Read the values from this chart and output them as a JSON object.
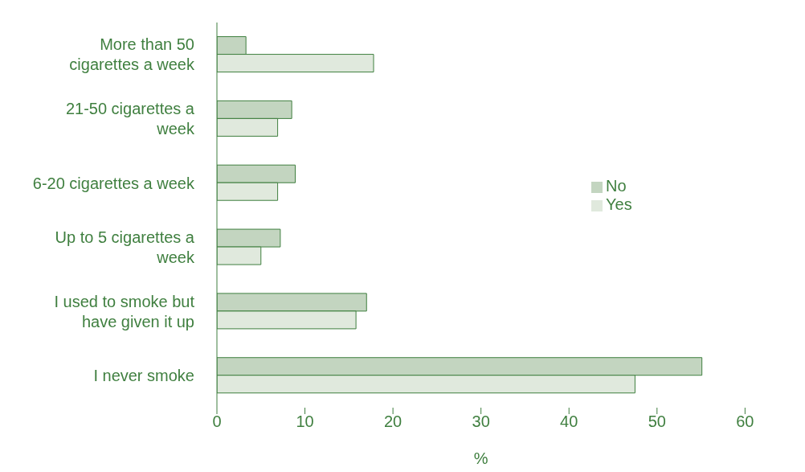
{
  "chart_data": {
    "type": "bar",
    "orientation": "horizontal",
    "xlabel": "%",
    "categories": [
      "More than 50 cigarettes a week",
      "21-50 cigarettes a week",
      "6-20 cigarettes a week",
      "Up to 5 cigarettes a week",
      "I used to smoke but have given it up",
      "I never smoke"
    ],
    "series": [
      {
        "name": "No",
        "color": "#c3d5c0",
        "values": [
          3.3,
          8.5,
          8.9,
          7.2,
          17.0,
          55.1
        ]
      },
      {
        "name": "Yes",
        "color": "#e0e9dd",
        "values": [
          17.8,
          6.9,
          6.9,
          5.0,
          15.8,
          47.5
        ]
      }
    ],
    "xlim": [
      0,
      60
    ],
    "xticks": [
      0,
      10,
      20,
      30,
      40,
      50,
      60
    ],
    "legend": "right"
  }
}
